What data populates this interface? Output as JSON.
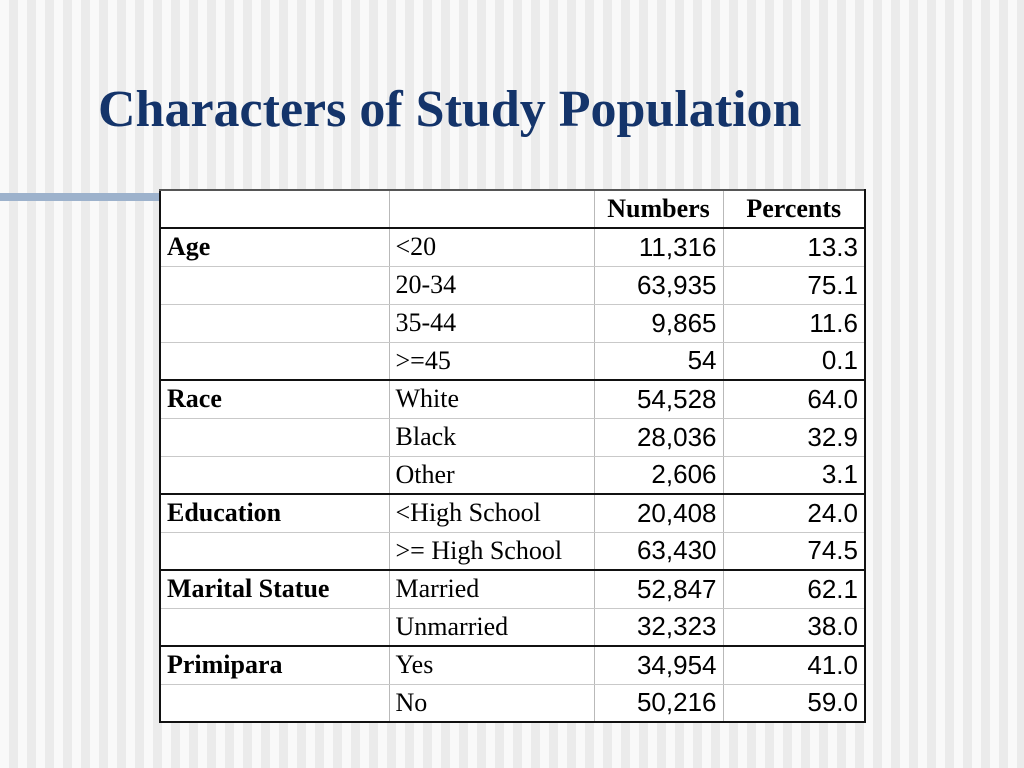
{
  "slide": {
    "title": "Characters of Study Population"
  },
  "table": {
    "headers": [
      "",
      "",
      "Numbers",
      "Percents"
    ],
    "rows": [
      {
        "category": "Age",
        "subgroup": "<20",
        "number": "11,316",
        "percent": "13.3"
      },
      {
        "category": "",
        "subgroup": "20-34",
        "number": "63,935",
        "percent": "75.1"
      },
      {
        "category": "",
        "subgroup": "35-44",
        "number": "9,865",
        "percent": "11.6"
      },
      {
        "category": "",
        "subgroup": ">=45",
        "number": "54",
        "percent": "0.1"
      },
      {
        "category": "Race",
        "subgroup": "White",
        "number": "54,528",
        "percent": "64.0"
      },
      {
        "category": "",
        "subgroup": "Black",
        "number": "28,036",
        "percent": "32.9"
      },
      {
        "category": "",
        "subgroup": "Other",
        "number": "2,606",
        "percent": "3.1"
      },
      {
        "category": "Education",
        "subgroup": "<High School",
        "number": "20,408",
        "percent": "24.0"
      },
      {
        "category": "",
        "subgroup": ">= High School",
        "number": "63,430",
        "percent": "74.5"
      },
      {
        "category": "Marital Statue",
        "subgroup": "Married",
        "number": "52,847",
        "percent": "62.1"
      },
      {
        "category": "",
        "subgroup": "Unmarried",
        "number": "32,323",
        "percent": "38.0"
      },
      {
        "category": "Primipara",
        "subgroup": "Yes",
        "number": "34,954",
        "percent": "41.0"
      },
      {
        "category": "",
        "subgroup": "No",
        "number": "50,216",
        "percent": "59.0"
      }
    ]
  },
  "colors": {
    "title": "#14346a",
    "accent_rule": "#9db2cc"
  }
}
